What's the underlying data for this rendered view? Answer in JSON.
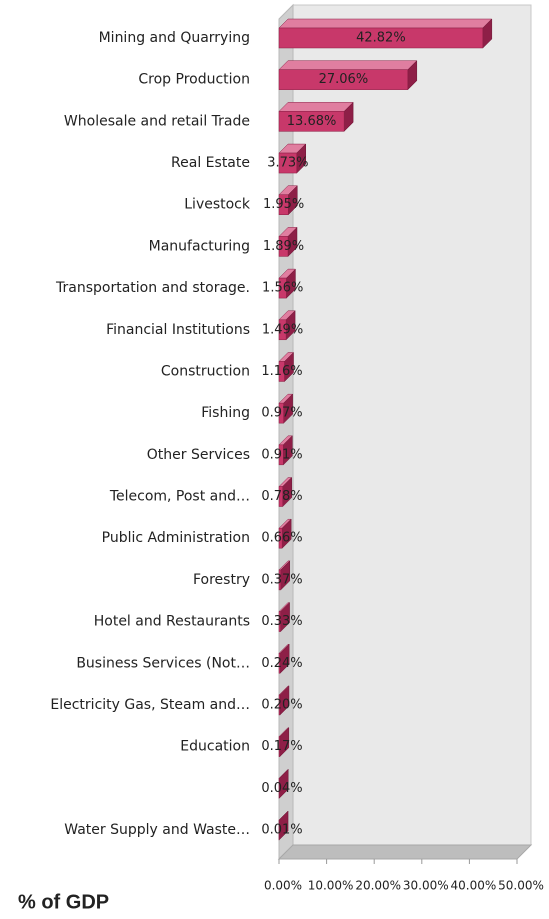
{
  "chart_data": {
    "type": "bar",
    "orientation": "horizontal",
    "three_d": true,
    "title": "% of GDP",
    "categories": [
      "Mining and  Quarrying",
      "Crop Production",
      "Wholesale and retail Trade",
      "Real Estate",
      "Livestock",
      "Manufacturing",
      "Transportation and storage.",
      "Financial  Institutions",
      "Construction",
      "Fishing",
      "Other Services",
      "Telecom, Post and…",
      "Public Administration",
      "Forestry",
      "Hotel and Restaurants",
      "Business Services (Not…",
      "Electricity Gas, Steam and…",
      "Education",
      null,
      "Water Supply and Waste…"
    ],
    "values": [
      42.82,
      27.06,
      13.68,
      3.73,
      1.95,
      1.89,
      1.56,
      1.49,
      1.16,
      0.97,
      0.91,
      0.78,
      0.66,
      0.37,
      0.33,
      0.24,
      0.2,
      0.17,
      0.04,
      0.01
    ],
    "value_labels": [
      "42.82%",
      "27.06%",
      "13.68%",
      "3.73%",
      "1.95%",
      "1.89%",
      "1.56%",
      "1.49%",
      "1.16%",
      "0.97%",
      "0.91%",
      "0.78%",
      "0.66%",
      "0.37%",
      "0.33%",
      "0.24%",
      "0.20%",
      "0.17%",
      "0.04%",
      "0.01%"
    ],
    "color": "#c8386a",
    "xlim": [
      0,
      50
    ],
    "xticks": [
      {
        "value": 0,
        "label": "0.00%"
      },
      {
        "value": 10,
        "label": "10.00%"
      },
      {
        "value": 20,
        "label": "20.00%"
      },
      {
        "value": 30,
        "label": "30.00%"
      },
      {
        "value": 40,
        "label": "40.00%"
      },
      {
        "value": 50,
        "label": "50.00%"
      }
    ],
    "grid": false
  }
}
